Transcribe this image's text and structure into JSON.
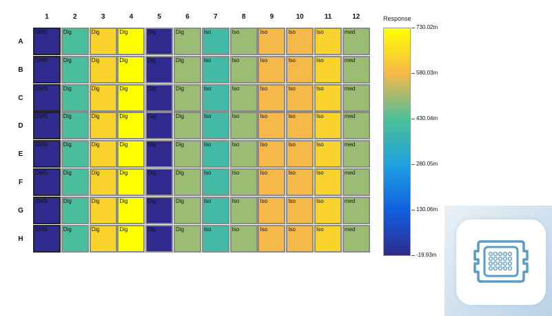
{
  "chart_data": {
    "type": "heatmap",
    "columns": [
      "1",
      "2",
      "3",
      "4",
      "5",
      "6",
      "7",
      "8",
      "9",
      "10",
      "11",
      "12"
    ],
    "rows": [
      "A",
      "B",
      "C",
      "D",
      "E",
      "F",
      "G",
      "H"
    ],
    "column_labels": [
      "DMS",
      "Dig",
      "Dig",
      "Dig",
      "Dig",
      "Dig",
      "Iso",
      "Iso",
      "Iso",
      "Iso",
      "Iso",
      "med"
    ],
    "column_values": [
      -0.0199,
      0.42,
      0.64,
      0.73,
      -0.0199,
      0.5,
      0.4,
      0.5,
      0.58,
      0.58,
      0.64,
      0.5
    ],
    "values_unit": "m",
    "colorbar": {
      "title": "Response",
      "min": -19.93,
      "max": 730.02,
      "tick_labels": [
        "730.02m",
        "580.03m",
        "430.04m",
        "280.05m",
        "130.06m",
        "-19.93m"
      ],
      "colors": [
        "#ffff00",
        "#f7b84a",
        "#4bc097",
        "#1fa0e0",
        "#1060e0",
        "#2f2a8e"
      ]
    }
  },
  "icons": {
    "app": "microplate-icon"
  }
}
